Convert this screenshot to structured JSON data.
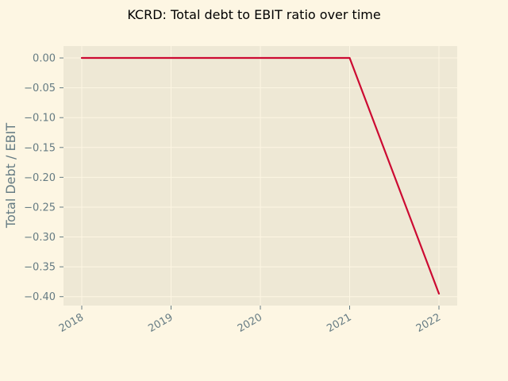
{
  "chart_data": {
    "type": "line",
    "title": "KCRD: Total debt to EBIT ratio over time",
    "xlabel": "",
    "ylabel": "Total Debt / EBIT",
    "x": [
      "2018",
      "2019",
      "2020",
      "2021",
      "2022"
    ],
    "x_ticks": [
      "2018",
      "2019",
      "2020",
      "2021",
      "2022"
    ],
    "y_ticks": [
      "0.00",
      "−0.05",
      "−0.10",
      "−0.15",
      "−0.20",
      "−0.25",
      "−0.30",
      "−0.35",
      "−0.40"
    ],
    "ylim": [
      -0.415,
      0.02
    ],
    "grid": true,
    "legend": false,
    "series": [
      {
        "values": [
          0.0,
          0.0,
          0.0,
          0.0,
          -0.395
        ]
      }
    ],
    "colors": {
      "figure_bg": "#fdf6e3",
      "plot_bg": "#eee8d5",
      "grid": "#fdf6e3",
      "line": "#cc0a32",
      "tick_text": "#657b83",
      "title_text": "#000000"
    }
  }
}
